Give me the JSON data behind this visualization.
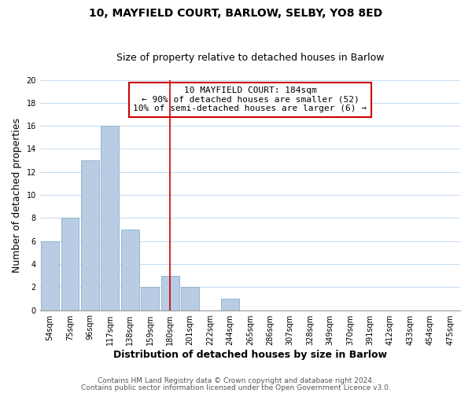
{
  "title": "10, MAYFIELD COURT, BARLOW, SELBY, YO8 8ED",
  "subtitle": "Size of property relative to detached houses in Barlow",
  "xlabel": "Distribution of detached houses by size in Barlow",
  "ylabel": "Number of detached properties",
  "bar_labels": [
    "54sqm",
    "75sqm",
    "96sqm",
    "117sqm",
    "138sqm",
    "159sqm",
    "180sqm",
    "201sqm",
    "222sqm",
    "244sqm",
    "265sqm",
    "286sqm",
    "307sqm",
    "328sqm",
    "349sqm",
    "370sqm",
    "391sqm",
    "412sqm",
    "433sqm",
    "454sqm",
    "475sqm"
  ],
  "bar_heights": [
    6,
    8,
    13,
    16,
    7,
    2,
    3,
    2,
    0,
    1,
    0,
    0,
    0,
    0,
    0,
    0,
    0,
    0,
    0,
    0,
    0
  ],
  "bar_color": "#b8cce4",
  "bar_edge_color": "#8aafc8",
  "grid_color": "#c8ddf0",
  "vline_x": 6,
  "vline_color": "#cc0000",
  "annotation_title": "10 MAYFIELD COURT: 184sqm",
  "annotation_line1": "← 90% of detached houses are smaller (52)",
  "annotation_line2": "10% of semi-detached houses are larger (6) →",
  "annotation_box_color": "#ffffff",
  "annotation_border_color": "#cc0000",
  "ylim": [
    0,
    20
  ],
  "yticks": [
    0,
    2,
    4,
    6,
    8,
    10,
    12,
    14,
    16,
    18,
    20
  ],
  "footnote1": "Contains HM Land Registry data © Crown copyright and database right 2024.",
  "footnote2": "Contains public sector information licensed under the Open Government Licence v3.0.",
  "bg_color": "#ffffff",
  "title_fontsize": 10,
  "subtitle_fontsize": 9,
  "axis_label_fontsize": 9,
  "tick_fontsize": 7,
  "annotation_fontsize": 8,
  "footnote_fontsize": 6.5
}
